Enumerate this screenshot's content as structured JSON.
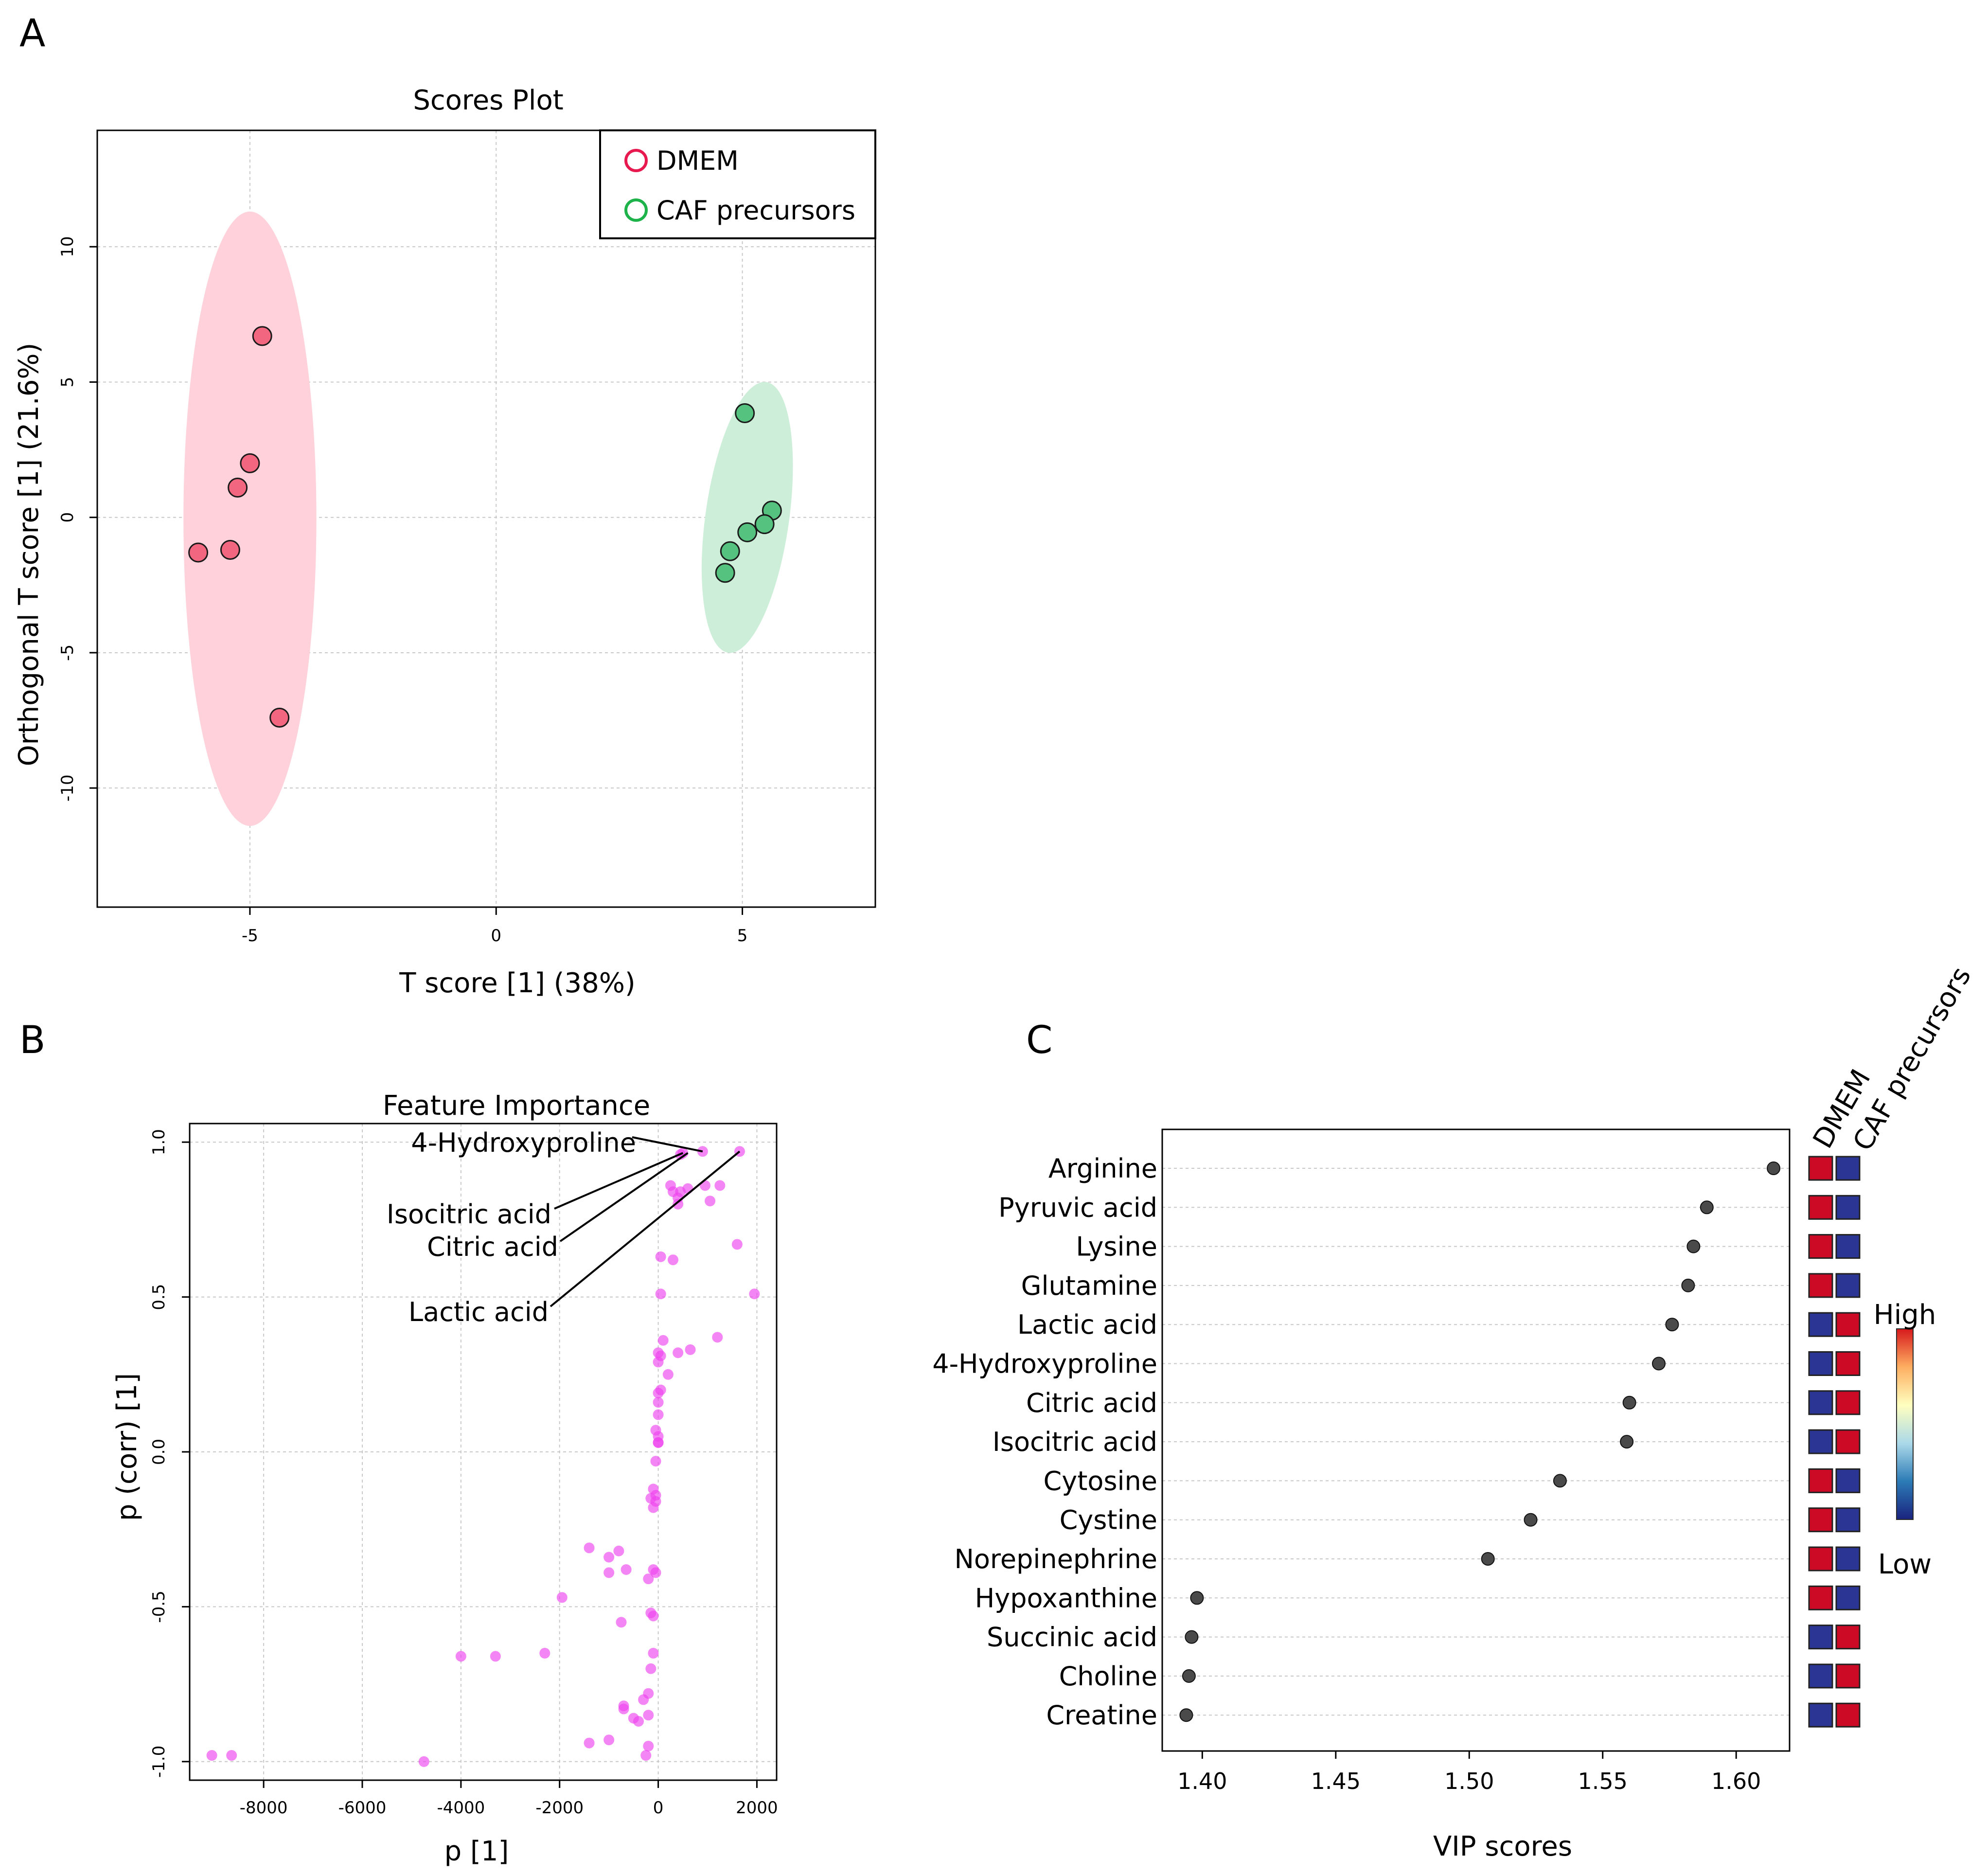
{
  "panels": {
    "a": "A",
    "b": "B",
    "c": "C"
  },
  "chart_data": [
    {
      "type": "scatter",
      "panel": "A",
      "title": "Scores Plot",
      "xlabel": "T score [1] (38%)",
      "ylabel": "Orthogonal T score [1] (21.6%)",
      "xlim": [
        -8.1,
        7.7
      ],
      "ylim": [
        -14.4,
        14.3
      ],
      "xticks": [
        -5,
        0,
        5
      ],
      "yticks": [
        10,
        5,
        0,
        -5,
        -10
      ],
      "grid": true,
      "legend": {
        "position": "top-right",
        "entries": [
          "DMEM",
          "CAF precursors"
        ]
      },
      "colors": {
        "DMEM": "#e8194f",
        "CAF precursors": "#1db34a",
        "DMEM_fill": "#f3667f",
        "CAF_fill": "#55c27f",
        "DMEM_ellipse": "#ffd1da",
        "CAF_ellipse": "#cdeed8"
      },
      "series": [
        {
          "name": "DMEM",
          "x": [
            -4.75,
            -5.0,
            -5.25,
            -6.05,
            -5.4,
            -4.4
          ],
          "y": [
            6.7,
            2.0,
            1.1,
            -1.3,
            -1.2,
            -7.4
          ]
        },
        {
          "name": "CAF precursors",
          "x": [
            5.05,
            5.6,
            5.45,
            5.1,
            4.75,
            4.65
          ],
          "y": [
            3.85,
            0.25,
            -0.25,
            -0.55,
            -1.25,
            -2.05
          ]
        }
      ],
      "ellipses": [
        {
          "name": "DMEM",
          "cx": -5.0,
          "cy": -0.05,
          "rx": 1.35,
          "ry": 11.35,
          "rotation_deg": 0
        },
        {
          "name": "CAF precursors",
          "cx": 5.1,
          "cy": 0.0,
          "rx": 0.85,
          "ry": 5.05,
          "rotation_deg": 8
        }
      ]
    },
    {
      "type": "scatter",
      "panel": "B",
      "title": "Feature Importance",
      "xlabel": "p [1]",
      "ylabel": "p (corr) [1]",
      "xlim": [
        -9500,
        2400
      ],
      "ylim": [
        -1.06,
        1.06
      ],
      "xticks": [
        -8000,
        -6000,
        -4000,
        -2000,
        0,
        2000
      ],
      "yticks": [
        1.0,
        0.5,
        0.0,
        -0.5,
        -1.0
      ],
      "ytick_labels": [
        "1.0",
        "0.5",
        "0.0",
        "-0.5",
        "-1.0"
      ],
      "grid": true,
      "point_color": "#ee44ee",
      "annotations": [
        {
          "text": "4-Hydroxyproline",
          "x": 900,
          "y": 0.97
        },
        {
          "text": "Isocitric acid",
          "x": 500,
          "y": 0.965
        },
        {
          "text": "Citric acid",
          "x": 600,
          "y": 0.965
        },
        {
          "text": "Lactic acid",
          "x": 1650,
          "y": 0.97
        }
      ],
      "x": [
        900,
        1650,
        500,
        450,
        250,
        300,
        450,
        600,
        1250,
        1050,
        400,
        400,
        950,
        1600,
        50,
        300,
        1950,
        50,
        1200,
        650,
        400,
        100,
        0,
        200,
        50,
        0,
        0,
        50,
        0,
        0,
        -50,
        0,
        0,
        0,
        -50,
        -50,
        -100,
        -150,
        -50,
        -100,
        -800,
        -1000,
        -1400,
        -1000,
        -650,
        -100,
        -50,
        -200,
        -1950,
        -150,
        -100,
        -750,
        -100,
        -2300,
        -3300,
        -4000,
        -150,
        -200,
        -700,
        -300,
        -700,
        -500,
        -400,
        -200,
        -1400,
        -1000,
        -200,
        -250,
        -8650,
        -9050,
        -4750
      ],
      "y": [
        0.97,
        0.97,
        0.965,
        0.96,
        0.86,
        0.84,
        0.84,
        0.85,
        0.86,
        0.81,
        0.82,
        0.8,
        0.86,
        0.67,
        0.63,
        0.62,
        0.51,
        0.51,
        0.37,
        0.33,
        0.32,
        0.36,
        0.32,
        0.25,
        0.31,
        0.29,
        0.19,
        0.2,
        0.16,
        0.12,
        0.07,
        0.05,
        0.03,
        0.03,
        -0.03,
        -0.14,
        -0.12,
        -0.15,
        -0.16,
        -0.18,
        -0.32,
        -0.34,
        -0.31,
        -0.39,
        -0.38,
        -0.38,
        -0.39,
        -0.41,
        -0.47,
        -0.52,
        -0.53,
        -0.55,
        -0.65,
        -0.65,
        -0.66,
        -0.66,
        -0.7,
        -0.78,
        -0.82,
        -0.8,
        -0.83,
        -0.86,
        -0.87,
        -0.85,
        -0.94,
        -0.93,
        -0.95,
        -0.98,
        -0.98,
        -0.98,
        -1.0
      ]
    },
    {
      "type": "scatter",
      "panel": "C",
      "title": "",
      "xlabel": "VIP scores",
      "xlim": [
        1.385,
        1.62
      ],
      "xticks": [
        1.4,
        1.45,
        1.5,
        1.55,
        1.6
      ],
      "xtick_labels": [
        "1.40",
        "1.45",
        "1.50",
        "1.55",
        "1.60"
      ],
      "grid": true,
      "point_color": "#4a4a4a",
      "categories": [
        "Arginine",
        "Pyruvic acid",
        "Lysine",
        "Glutamine",
        "Lactic acid",
        "4-Hydroxyproline",
        "Citric acid",
        "Isocitric acid",
        "Cytosine",
        "Cystine",
        "Norepinephrine",
        "Hypoxanthine",
        "Succinic acid",
        "Choline",
        "Creatine"
      ],
      "values": [
        1.614,
        1.589,
        1.584,
        1.582,
        1.576,
        1.571,
        1.56,
        1.559,
        1.534,
        1.523,
        1.507,
        1.398,
        1.396,
        1.395,
        1.394
      ],
      "heatmap": {
        "columns": [
          "DMEM",
          "CAF precursors"
        ],
        "levels": [
          [
            "High",
            "Low"
          ],
          [
            "High",
            "Low"
          ],
          [
            "High",
            "Low"
          ],
          [
            "High",
            "Low"
          ],
          [
            "Low",
            "High"
          ],
          [
            "Low",
            "High"
          ],
          [
            "Low",
            "High"
          ],
          [
            "Low",
            "High"
          ],
          [
            "High",
            "Low"
          ],
          [
            "High",
            "Low"
          ],
          [
            "High",
            "Low"
          ],
          [
            "High",
            "Low"
          ],
          [
            "Low",
            "High"
          ],
          [
            "Low",
            "High"
          ],
          [
            "Low",
            "High"
          ]
        ],
        "colors": {
          "High": "#cc0a26",
          "Low": "#2b3593"
        }
      },
      "colorbar": {
        "high_label": "High",
        "low_label": "Low",
        "stops": [
          "#d7191c",
          "#fdae61",
          "#ffffbf",
          "#abd9e9",
          "#2c7bb6",
          "#1a237e"
        ]
      }
    }
  ]
}
